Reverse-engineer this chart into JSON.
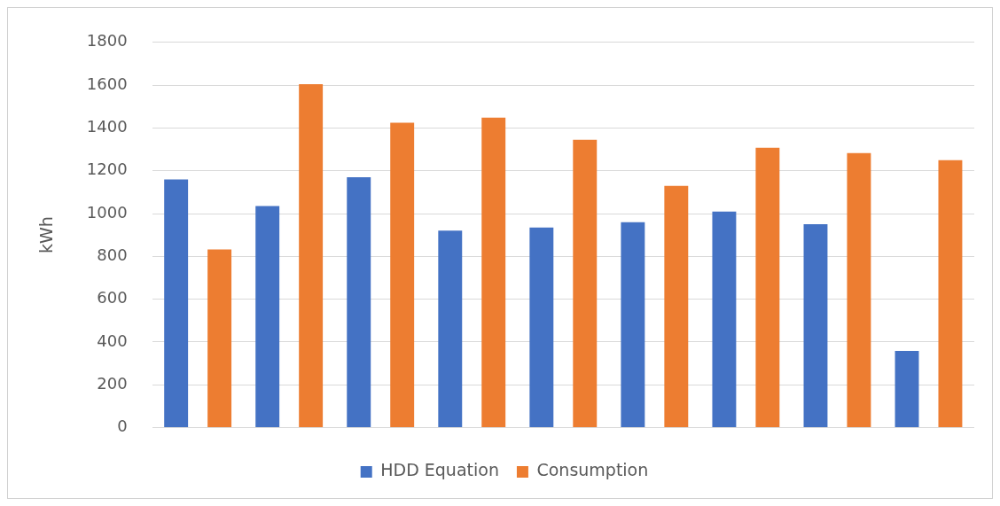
{
  "chart_data": {
    "type": "bar",
    "ylabel": "kWh",
    "categories": [
      null,
      null,
      null,
      null,
      null,
      null,
      null,
      null,
      null
    ],
    "series": [
      {
        "name": "HDD Equation",
        "color": "#4472c4",
        "values": [
          1160,
          1035,
          1170,
          920,
          935,
          960,
          1010,
          950,
          358
        ]
      },
      {
        "name": "Consumption",
        "color": "#ed7d31",
        "values": [
          833,
          1605,
          1425,
          1448,
          1345,
          1130,
          1308,
          1283,
          1250
        ]
      }
    ],
    "ylim": [
      0,
      1800
    ],
    "yticks": [
      0,
      200,
      400,
      600,
      800,
      1000,
      1200,
      1400,
      1600,
      1800
    ],
    "grid": "y",
    "legend": "bottom"
  }
}
